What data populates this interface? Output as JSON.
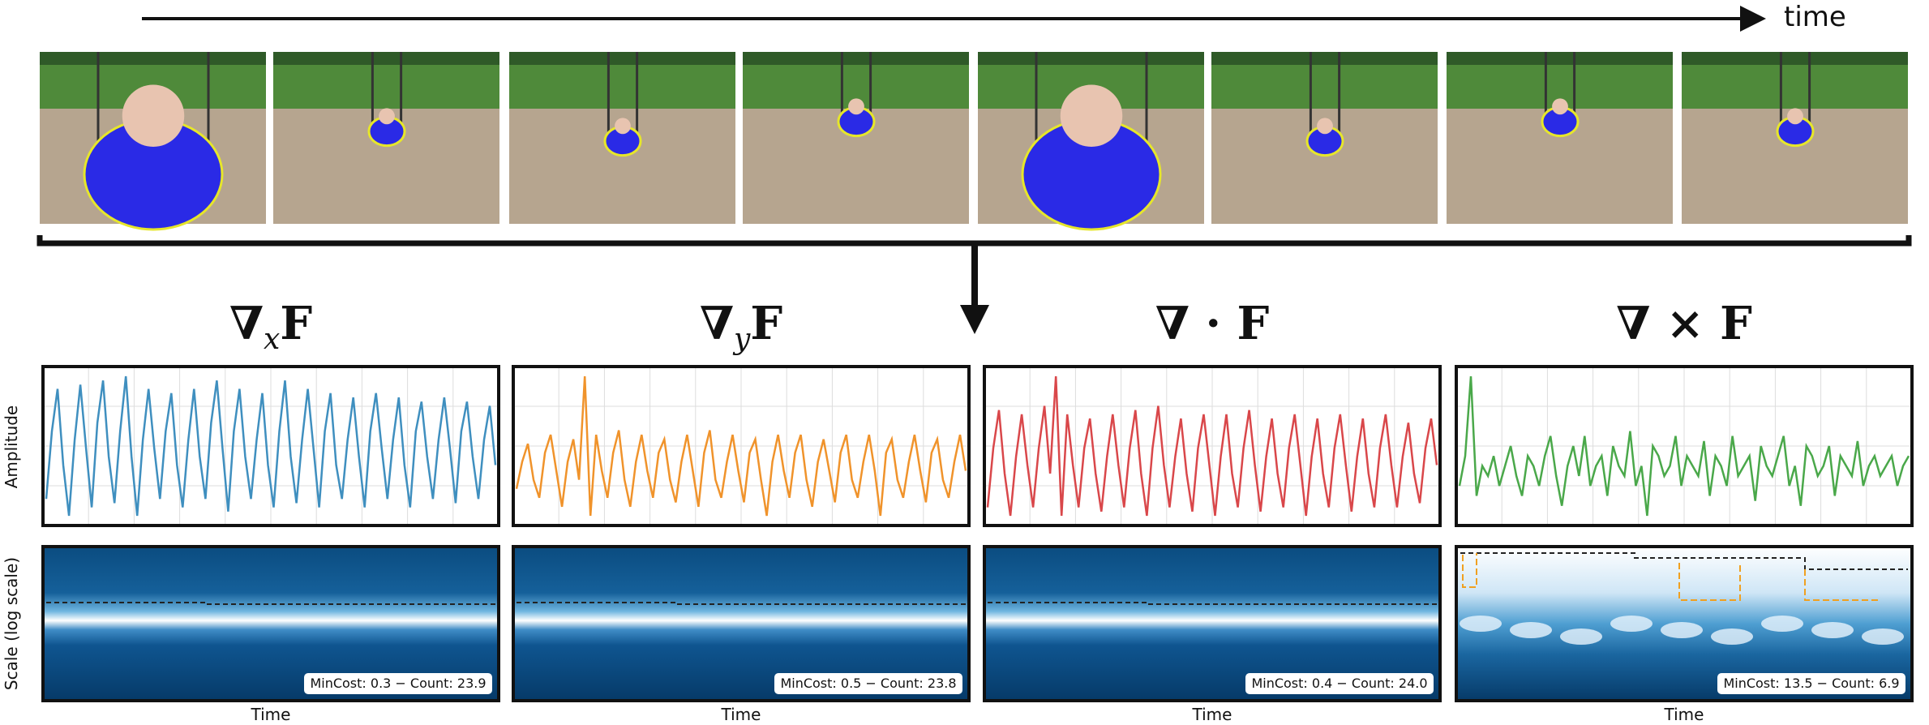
{
  "header": {
    "time_label": "time"
  },
  "axis_labels": {
    "amplitude": "Amplitude",
    "scale": "Scale (log scale)"
  },
  "panels": [
    {
      "title": {
        "op": "∇",
        "sub": "x",
        "field": "F"
      },
      "color": "#3f8fbf",
      "x_label": "Time",
      "stats": "MinCost: 0.3 − Count: 23.9",
      "signal": [
        -0.6,
        0.2,
        0.7,
        -0.2,
        -0.8,
        0.1,
        0.75,
        0.0,
        -0.7,
        0.3,
        0.8,
        -0.1,
        -0.65,
        0.2,
        0.85,
        -0.1,
        -0.8,
        0.1,
        0.7,
        0.0,
        -0.6,
        0.2,
        0.65,
        -0.2,
        -0.7,
        0.1,
        0.7,
        -0.1,
        -0.6,
        0.3,
        0.8,
        0.0,
        -0.75,
        0.2,
        0.7,
        -0.1,
        -0.6,
        0.1,
        0.65,
        -0.2,
        -0.7,
        0.2,
        0.8,
        -0.1,
        -0.65,
        0.1,
        0.7,
        0.0,
        -0.7,
        0.2,
        0.65,
        -0.2,
        -0.6,
        0.1,
        0.6,
        -0.1,
        -0.7,
        0.2,
        0.65,
        0.0,
        -0.6,
        0.1,
        0.6,
        -0.2,
        -0.7,
        0.2,
        0.55,
        -0.1,
        -0.6,
        0.1,
        0.6,
        0.0,
        -0.65,
        0.2,
        0.55,
        -0.1,
        -0.6,
        0.1,
        0.5,
        -0.2
      ]
    },
    {
      "title": {
        "op": "∇",
        "sub": "y",
        "field": "F"
      },
      "color": "#f0932b",
      "x_label": "Time",
      "stats": "MinCost: 0.5 − Count: 23.8",
      "signal": [
        -0.3,
        0.0,
        0.2,
        -0.2,
        -0.4,
        0.1,
        0.3,
        -0.1,
        -0.5,
        0.0,
        0.25,
        -0.2,
        0.95,
        -0.6,
        0.3,
        -0.1,
        -0.4,
        0.1,
        0.35,
        -0.2,
        -0.5,
        0.0,
        0.3,
        -0.1,
        -0.4,
        0.1,
        0.25,
        -0.2,
        -0.45,
        0.0,
        0.3,
        -0.1,
        -0.5,
        0.1,
        0.35,
        -0.2,
        -0.4,
        0.0,
        0.3,
        -0.1,
        -0.45,
        0.1,
        0.25,
        -0.2,
        -0.6,
        0.0,
        0.3,
        -0.1,
        -0.4,
        0.1,
        0.3,
        -0.2,
        -0.5,
        0.0,
        0.25,
        -0.1,
        -0.45,
        0.1,
        0.3,
        -0.2,
        -0.4,
        0.0,
        0.3,
        -0.1,
        -0.6,
        0.1,
        0.25,
        -0.2,
        -0.4,
        0.0,
        0.3,
        -0.1,
        -0.45,
        0.1,
        0.25,
        -0.2,
        -0.4,
        0.0,
        0.3,
        -0.1
      ]
    },
    {
      "title": {
        "op": "∇ · ",
        "sub": "",
        "field": "F"
      },
      "color": "#d9474a",
      "x_label": "Time",
      "stats": "MinCost: 0.4 − Count: 24.0",
      "signal": [
        -0.6,
        0.1,
        0.55,
        -0.2,
        -0.7,
        0.0,
        0.5,
        -0.1,
        -0.6,
        0.1,
        0.6,
        -0.2,
        0.95,
        -0.7,
        0.5,
        -0.1,
        -0.6,
        0.1,
        0.45,
        -0.2,
        -0.65,
        0.0,
        0.5,
        -0.1,
        -0.6,
        0.1,
        0.55,
        -0.2,
        -0.7,
        0.1,
        0.6,
        -0.1,
        -0.6,
        0.0,
        0.45,
        -0.2,
        -0.65,
        0.1,
        0.5,
        -0.1,
        -0.7,
        0.0,
        0.5,
        -0.2,
        -0.6,
        0.1,
        0.55,
        -0.1,
        -0.65,
        0.0,
        0.45,
        -0.2,
        -0.6,
        0.1,
        0.5,
        -0.1,
        -0.7,
        0.0,
        0.45,
        -0.2,
        -0.6,
        0.1,
        0.5,
        -0.1,
        -0.65,
        0.0,
        0.45,
        -0.2,
        -0.6,
        0.1,
        0.5,
        -0.1,
        -0.6,
        0.0,
        0.4,
        -0.2,
        -0.55,
        0.1,
        0.45,
        -0.1
      ]
    },
    {
      "title": {
        "op": "∇ × ",
        "sub": "",
        "field": "F"
      },
      "color": "#4aa84a",
      "x_label": "Time",
      "stats": "MinCost: 13.5 − Count: 6.9",
      "signal": [
        -0.2,
        0.1,
        0.9,
        -0.3,
        0.0,
        -0.1,
        0.1,
        -0.2,
        0.0,
        0.2,
        -0.1,
        -0.3,
        0.1,
        0.0,
        -0.2,
        0.1,
        0.3,
        -0.1,
        -0.4,
        0.0,
        0.2,
        -0.1,
        0.3,
        -0.2,
        0.0,
        0.1,
        -0.3,
        0.2,
        0.0,
        -0.1,
        0.35,
        -0.2,
        0.0,
        -0.5,
        0.2,
        0.1,
        -0.1,
        0.0,
        0.3,
        -0.2,
        0.1,
        0.0,
        -0.1,
        0.25,
        -0.3,
        0.1,
        0.0,
        -0.2,
        0.3,
        -0.1,
        0.0,
        0.1,
        -0.35,
        0.2,
        0.0,
        -0.1,
        0.1,
        0.3,
        -0.2,
        0.0,
        -0.4,
        0.2,
        0.1,
        -0.1,
        0.0,
        0.2,
        -0.3,
        0.1,
        0.0,
        -0.1,
        0.25,
        -0.2,
        0.0,
        0.1,
        -0.1,
        0.0,
        0.1,
        -0.2,
        0.0,
        0.1
      ]
    }
  ]
}
